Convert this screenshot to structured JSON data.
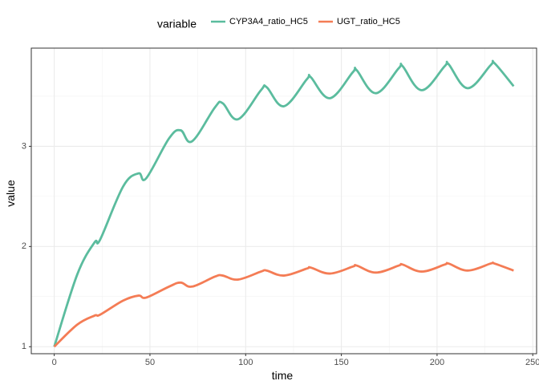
{
  "chart_data": {
    "type": "line",
    "title": "",
    "xlabel": "time",
    "ylabel": "value",
    "xlim": [
      -12,
      252
    ],
    "ylim": [
      0.93,
      3.98
    ],
    "x_ticks": [
      0,
      50,
      100,
      150,
      200,
      250
    ],
    "x_tick_labels": [
      "0",
      "50",
      "100",
      "150",
      "200",
      "250"
    ],
    "y_ticks": [
      1,
      2,
      3
    ],
    "y_tick_labels": [
      "1",
      "2",
      "3"
    ],
    "grid": true,
    "legend": {
      "title": "variable",
      "position": "top"
    },
    "series": [
      {
        "name": "CYP3A4_ratio_HC5",
        "color": "#5bbc9e",
        "x": [
          0,
          12,
          21,
          24,
          36,
          44,
          48,
          60,
          66,
          72,
          84,
          88,
          96,
          108,
          111,
          120,
          132,
          134,
          144,
          156,
          158,
          168,
          180,
          182,
          192,
          204,
          206,
          216,
          228,
          230,
          240
        ],
        "y": [
          1.0,
          1.72,
          2.04,
          2.07,
          2.6,
          2.73,
          2.68,
          3.08,
          3.16,
          3.05,
          3.39,
          3.43,
          3.27,
          3.56,
          3.59,
          3.4,
          3.67,
          3.69,
          3.48,
          3.74,
          3.76,
          3.53,
          3.78,
          3.8,
          3.56,
          3.8,
          3.82,
          3.58,
          3.81,
          3.83,
          3.6
        ]
      },
      {
        "name": "UGT_ratio_HC5",
        "color": "#f47c55",
        "x": [
          0,
          12,
          21,
          24,
          36,
          44,
          48,
          60,
          66,
          72,
          84,
          88,
          96,
          108,
          111,
          120,
          132,
          134,
          144,
          156,
          158,
          168,
          180,
          182,
          192,
          204,
          206,
          216,
          228,
          230,
          240
        ],
        "y": [
          1.0,
          1.22,
          1.31,
          1.32,
          1.46,
          1.51,
          1.49,
          1.6,
          1.64,
          1.6,
          1.7,
          1.71,
          1.67,
          1.75,
          1.76,
          1.71,
          1.78,
          1.79,
          1.73,
          1.8,
          1.81,
          1.74,
          1.81,
          1.82,
          1.75,
          1.82,
          1.83,
          1.76,
          1.83,
          1.83,
          1.76
        ]
      }
    ]
  }
}
